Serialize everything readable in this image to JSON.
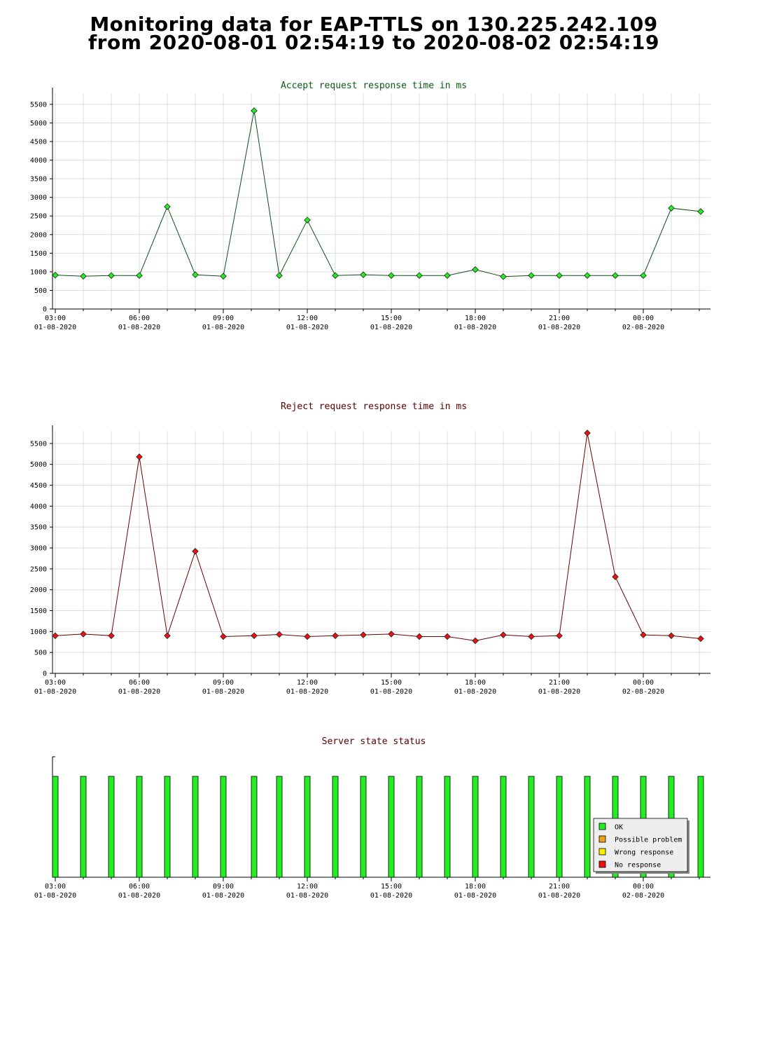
{
  "page": {
    "title_line1": "Monitoring data for EAP-TTLS on 130.225.242.109",
    "title_line2": "from 2020-08-01 02:54:19 to 2020-08-02 02:54:19"
  },
  "colors": {
    "accept_line": "#0b4d14",
    "accept_marker": "#22ee22",
    "accept_title": "#0b5a14",
    "reject_line": "#6a0000",
    "reject_marker": "#ee1111",
    "reject_title": "#5a0000",
    "status_title": "#5a0000",
    "ok": "#22ee22",
    "possible_problem": "#f0a020",
    "wrong_response": "#ffee00",
    "no_response": "#ee1111",
    "grid": "#dddddd"
  },
  "x_ticks": [
    {
      "time": "03:00",
      "date": "01-08-2020"
    },
    {
      "time": "06:00",
      "date": "01-08-2020"
    },
    {
      "time": "09:00",
      "date": "01-08-2020"
    },
    {
      "time": "12:00",
      "date": "01-08-2020"
    },
    {
      "time": "15:00",
      "date": "01-08-2020"
    },
    {
      "time": "18:00",
      "date": "01-08-2020"
    },
    {
      "time": "21:00",
      "date": "01-08-2020"
    },
    {
      "time": "00:00",
      "date": "02-08-2020"
    }
  ],
  "chart_data": [
    {
      "type": "line",
      "title": "Accept request response time in ms",
      "x_unit": "hours since 03:00 01-08-2020",
      "xlim": [
        -0.1,
        23.4
      ],
      "ylim": [
        0,
        5800
      ],
      "y_ticks": [
        0,
        500,
        1000,
        1500,
        2000,
        2500,
        3000,
        3500,
        4000,
        4500,
        5000,
        5500
      ],
      "grid": true,
      "series": [
        {
          "x": [
            0.0,
            1.0,
            2.0,
            3.0,
            4.0,
            5.0,
            6.0,
            7.1,
            8.0,
            9.0,
            10.0,
            11.0,
            12.0,
            13.0,
            14.0,
            15.0,
            16.0,
            17.0,
            18.0,
            19.0,
            20.0,
            21.0,
            22.0,
            23.05
          ],
          "values": [
            910,
            880,
            900,
            900,
            2750,
            920,
            880,
            5330,
            900,
            2390,
            900,
            920,
            900,
            900,
            900,
            1060,
            870,
            900,
            900,
            900,
            900,
            900,
            2710,
            2620
          ]
        }
      ]
    },
    {
      "type": "line",
      "title": "Reject request response time in ms",
      "x_unit": "hours since 03:00 01-08-2020",
      "xlim": [
        -0.1,
        23.4
      ],
      "ylim": [
        0,
        5800
      ],
      "y_ticks": [
        0,
        500,
        1000,
        1500,
        2000,
        2500,
        3000,
        3500,
        4000,
        4500,
        5000,
        5500
      ],
      "grid": true,
      "series": [
        {
          "x": [
            0.0,
            1.0,
            2.0,
            3.0,
            4.0,
            5.0,
            6.0,
            7.1,
            8.0,
            9.0,
            10.0,
            11.0,
            12.0,
            13.0,
            14.0,
            15.0,
            16.0,
            17.0,
            18.0,
            19.0,
            20.0,
            21.0,
            22.0,
            23.05
          ],
          "values": [
            900,
            940,
            900,
            5180,
            900,
            2920,
            880,
            900,
            930,
            880,
            900,
            920,
            940,
            880,
            880,
            780,
            920,
            880,
            900,
            5750,
            2310,
            920,
            900,
            830
          ]
        }
      ]
    },
    {
      "type": "bar",
      "title": "Server state status",
      "x_unit": "hours since 03:00 01-08-2020",
      "xlim": [
        -0.1,
        23.4
      ],
      "x": [
        0.0,
        1.0,
        2.0,
        3.0,
        4.0,
        5.0,
        6.0,
        7.1,
        8.0,
        9.0,
        10.0,
        11.0,
        12.0,
        13.0,
        14.0,
        15.0,
        16.0,
        17.0,
        18.0,
        19.0,
        20.0,
        21.0,
        22.0,
        23.05
      ],
      "states": [
        "OK",
        "OK",
        "OK",
        "OK",
        "OK",
        "OK",
        "OK",
        "OK",
        "OK",
        "OK",
        "OK",
        "OK",
        "OK",
        "OK",
        "OK",
        "OK",
        "OK",
        "OK",
        "OK",
        "OK",
        "OK",
        "OK",
        "OK",
        "OK"
      ],
      "legend": [
        "OK",
        "Possible problem",
        "Wrong response",
        "No response"
      ],
      "legend_position": "bottom-right"
    }
  ]
}
